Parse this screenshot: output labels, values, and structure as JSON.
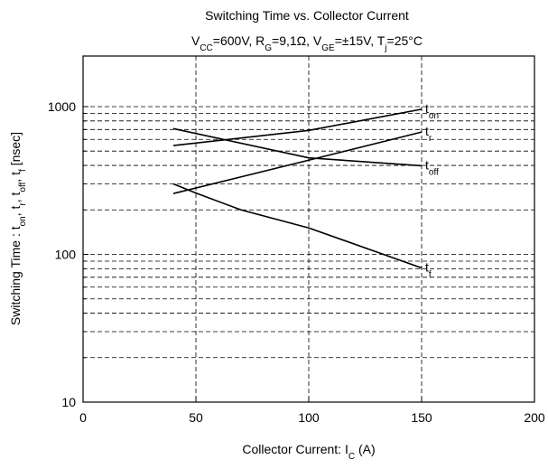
{
  "chart_data": {
    "type": "line",
    "title": "Switching Time vs. Collector Current",
    "subtitle": [
      {
        "text": "V"
      },
      {
        "sub": "CC"
      },
      {
        "text": "=600V, R"
      },
      {
        "sub": "G"
      },
      {
        "text": "=9,1Ω, V"
      },
      {
        "sub": "GE"
      },
      {
        "text": "=±15V, T"
      },
      {
        "sub": "j"
      },
      {
        "text": "=25°C"
      }
    ],
    "x_label": [
      {
        "text": "Collector Current: I"
      },
      {
        "sub": "C"
      },
      {
        "text": " (A)"
      }
    ],
    "y_label": [
      {
        "text": "Switching Time : t"
      },
      {
        "sub": "on"
      },
      {
        "text": ", t"
      },
      {
        "sub": "r"
      },
      {
        "text": ", t"
      },
      {
        "sub": "off"
      },
      {
        "text": ", t"
      },
      {
        "sub": "f"
      },
      {
        "text": " [nsec]"
      }
    ],
    "xlim": [
      0,
      200
    ],
    "xticks": [
      0,
      50,
      100,
      150,
      200
    ],
    "ylim": [
      10,
      2200
    ],
    "yticks": [
      10,
      100,
      1000
    ],
    "log_y": true,
    "y_grid": [
      20,
      30,
      40,
      50,
      60,
      70,
      80,
      90,
      100,
      200,
      300,
      400,
      500,
      600,
      700,
      800,
      900,
      1000
    ],
    "grid": true,
    "series": [
      {
        "name": "t",
        "subscript": "on",
        "color": "#000000",
        "x": [
          40,
          100,
          150
        ],
        "values": [
          545,
          690,
          960
        ]
      },
      {
        "name": "t",
        "subscript": "r",
        "color": "#000000",
        "x": [
          40,
          100,
          150
        ],
        "values": [
          258,
          434,
          673
        ]
      },
      {
        "name": "t",
        "subscript": "off",
        "color": "#000000",
        "x": [
          40,
          100,
          150
        ],
        "values": [
          710,
          450,
          398
        ]
      },
      {
        "name": "t",
        "subscript": "f",
        "color": "#000000",
        "x": [
          40,
          50,
          70,
          100,
          150
        ],
        "values": [
          300,
          260,
          200,
          151,
          81
        ]
      }
    ]
  }
}
